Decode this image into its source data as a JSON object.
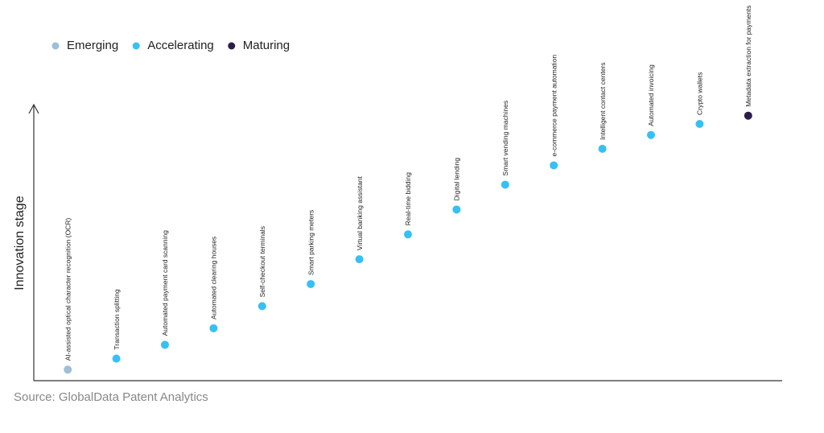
{
  "chart_data": {
    "type": "scatter",
    "categories": [
      "AI-assisted optical character recognition (OCR)",
      "Transaction splitting",
      "Automated payment card scanning",
      "Automated clearing houses",
      "Self-checkout terminals",
      "Smart parking meters",
      "Virtual banking assistant",
      "Real-time bidding",
      "Digital lending",
      "Smart vending machines",
      "e-commerce payment automation",
      "Intelligent contact centers",
      "Automated invoicing",
      "Crypto wallets",
      "Metadata extraction for payments"
    ],
    "series": [
      {
        "name": "Emerging",
        "color": "#9dbfd8",
        "values": [
          4,
          null,
          null,
          null,
          null,
          null,
          null,
          null,
          null,
          null,
          null,
          null,
          null,
          null,
          null
        ]
      },
      {
        "name": "Accelerating",
        "color": "#36c0f4",
        "values": [
          null,
          8,
          13,
          19,
          27,
          35,
          44,
          53,
          62,
          71,
          78,
          84,
          89,
          93,
          null
        ]
      },
      {
        "name": "Maturing",
        "color": "#2c1e4a",
        "values": [
          null,
          null,
          null,
          null,
          null,
          null,
          null,
          null,
          null,
          null,
          null,
          null,
          null,
          null,
          96
        ]
      }
    ],
    "ylim": [
      0,
      100
    ],
    "y_label": "Innovation stage",
    "source": "Source: GlobalData Patent Analytics",
    "grid": false
  }
}
